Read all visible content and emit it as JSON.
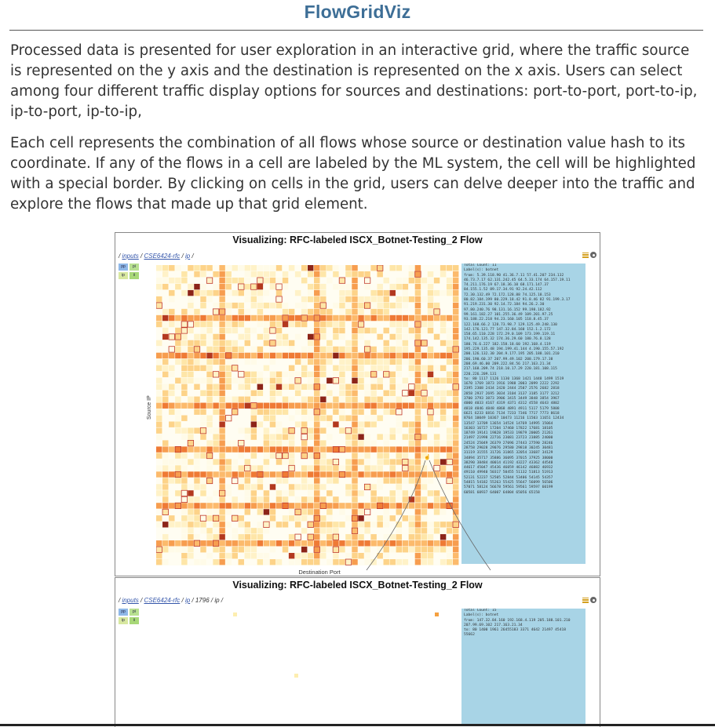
{
  "slide": {
    "title": "FlowGridViz",
    "paragraph1": "Processed data is presented for user exploration in an interactive grid, where the traffic source is represented on the y axis and the destination is represented on the x axis.  Users can select among four different traffic display options for sources and destinations: port-to-port, port-to-ip, ip-to-port, ip-to-ip,",
    "paragraph2": "Each cell represents the combination of all flows whose source or destination value hash to its coordinate.  If any of the flows in a cell are labeled by the ML system, the cell will be highlighted with a special border.  By clicking on cells in the grid, users can delve deeper into the traffic and explore the flows that made up that grid element."
  },
  "panel1": {
    "title": "Visualizing: RFC-labeled ISCX_Botnet-Testing_2 Flow",
    "breadcrumb": {
      "link1": "inputs",
      "sep1": " / ",
      "link2": "CSE6424-rfc",
      "sep2": " / ",
      "link3": "ip",
      "sep3": " /"
    },
    "options": [
      "pp",
      "pi",
      "ip",
      "ii"
    ],
    "y_axis_label": "Source IP",
    "x_axis_label": "Destination Port",
    "info_lines": [
      "Total Count: 11",
      "Label(s): botnet",
      "from: 5.39.118.90 41.36.7.11 57.41.207 234.132",
      "46.73.7.17 62.131.242.45 64.5.33.174 64.157.19.11",
      "74.211.176.19 67.18.36.10 68.171.147.37",
      "84.155.1.52 89.17.34.91 92.24.42.112",
      "72.30.132.49 72.172.128.88 74.125.18.153",
      "80.82.184.199 80.229.18.42 91.8.46 82 91.199.3.17",
      "91.219.231.30 92.14.72.184 94.26.2.30",
      "97.80.240.76 98.131.16.152 99.198.182.92",
      "99.161.182.27 101.255.36.49 109.201.97.25",
      "93.188.22.218 94.23.160.105 118.8.45.37",
      "122.168.66.2 128.73.98.7 129.125.49.248.130",
      "142.176.121.77 147.32.84.160 152.1.2.172",
      "158.65.110.228 172.29.0.109 173.199.119.11",
      "174.142.135.32 174.36.29.60 180.76.8.128",
      "180.76.6.227 182.158.18.60 192.168.4.119",
      "195.229.135.48 194.199.41.144 4.190.155.57.192",
      "200.126.132.30 204.9.177.195 205.188.101.210",
      "206.190.60.37 207.99.49.102 208.179.17.38",
      "208.69.46.00 209.222.84.56 217.163.21.34",
      "217.168.209.74 218.10.17.29 220.181.108.115",
      "220.226.209.131",
      "to: 80 1117 1126 1130 1368 1421 1448 1499 1519",
      "1670 1769 1873 1916 1988 2003 2099 2222 2292",
      "2395 2308 2434 2420 2444 2507 2576 2682 2818",
      "2858 2937 2695 3034 3104 3137 3185 3177 3212",
      "3700 3793 3873 3906 3415 3449 3848 3854 3967",
      "4000 4033 4167 4319 4371 4312 4558 4643 4802",
      "4818 4846 4848 4868 4891 4911 5117 5179 5808",
      "6621 6233 6816 7134 7233 7346 7717 7773 8618",
      "8764 10049 10367 10473 11216 11503 11651 12434",
      "13547 13709 13654 14524 14769 14995 15064",
      "16303 16727 17204 17460 17822 17681 18105",
      "18749 19141 19828 19533 19879 20005 21261",
      "21497 21998 22716 23081 23723 23885 24000",
      "24524 25049 26379 27096 27443 27590 28246",
      "28758 29028 29076 29580 29818 30245 30481",
      "31119 31555 31726 31865 32054 33687 34129",
      "34894 35717 35886 36095 37015 37925 38000",
      "38290 38484 40014 41192 43227 43362 44548",
      "44617 45047 45436 46059 46142 46882 46932",
      "49110 49940 50317 50455 51132 51813 51913",
      "52131 52237 52505 52844 53406 54145 54357",
      "54815 54182 55263 55425 55647 56099 56506",
      "57071 58124 56678 59561 59561 59597 60199",
      "60581 60937 64007 64804 65056 65158"
    ]
  },
  "panel2": {
    "title": "Visualizing: RFC-labeled ISCX_Botnet-Testing_2 Flow",
    "breadcrumb": {
      "link1": "inputs",
      "sep1": " / ",
      "link2": "CSE6424-rfc",
      "sep2": " / ",
      "link3": "ip",
      "sep3": " / 1796 / ip /"
    },
    "options": [
      "pp",
      "pi",
      "ip",
      "ii"
    ],
    "info_lines": [
      "Total Count: 15",
      "Label(s): botnet",
      "from: 147.32.84.160 192.168.4.119 205.188.101.210",
      "207.99.69.102 217.163.21.34",
      "to: 80 1400 1961 26455183 3371 4642 21497 45418",
      "55662"
    ]
  }
}
